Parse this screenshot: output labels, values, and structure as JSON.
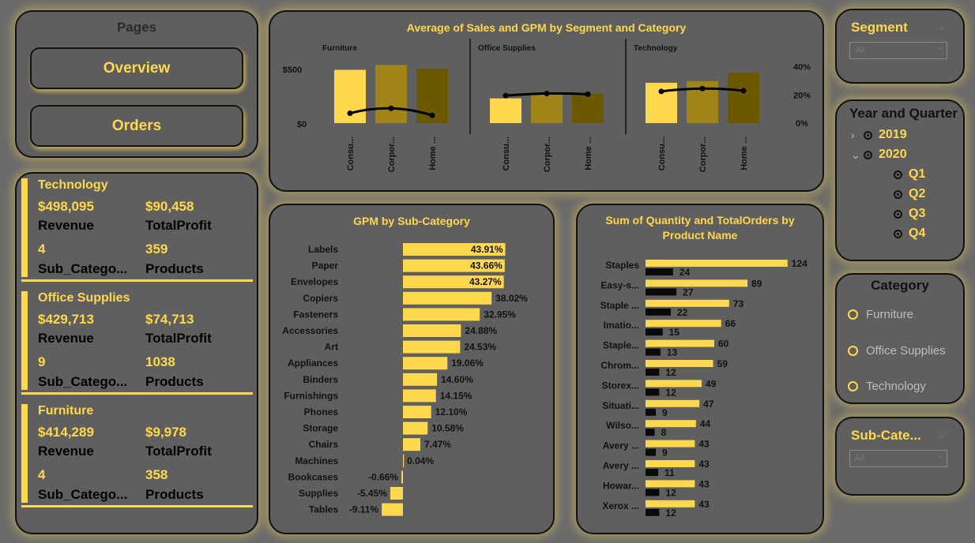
{
  "pages": {
    "title": "Pages",
    "buttons": [
      "Overview",
      "Orders"
    ]
  },
  "cards": [
    {
      "category": "Technology",
      "revenue": "$498,095",
      "revenue_label": "Revenue",
      "profit": "$90,458",
      "profit_label": "TotalProfit",
      "subcats": "4",
      "subcats_label": "Sub_Catego...",
      "products": "359",
      "products_label": "Products"
    },
    {
      "category": "Office Supplies",
      "revenue": "$429,713",
      "revenue_label": "Revenue",
      "profit": "$74,713",
      "profit_label": "TotalProfit",
      "subcats": "9",
      "subcats_label": "Sub_Catego...",
      "products": "1038",
      "products_label": "Products"
    },
    {
      "category": "Furniture",
      "revenue": "$414,289",
      "revenue_label": "Revenue",
      "profit": "$9,978",
      "profit_label": "TotalProfit",
      "subcats": "4",
      "subcats_label": "Sub_Catego...",
      "products": "358",
      "products_label": "Products"
    }
  ],
  "chart_data": [
    {
      "type": "bar",
      "title": "Average of Sales and GPM by Segment and Category",
      "panels": [
        "Furniture",
        "Office Supplies",
        "Technology"
      ],
      "categories": [
        "Consu...",
        "Corpor...",
        "Home ..."
      ],
      "y_ticks": [
        "$0",
        "$500"
      ],
      "y2_ticks": [
        "0%",
        "20%",
        "40%"
      ],
      "ylim": [
        0,
        550
      ],
      "y2lim": [
        0,
        0.42
      ],
      "series": [
        {
          "values": [
            [
              495,
              540,
              505
            ],
            [
              230,
              280,
              275
            ],
            [
              375,
              390,
              470
            ]
          ]
        },
        {
          "values": [
            [
              0.07,
              0.105,
              0.055
            ],
            [
              0.195,
              0.21,
              0.205
            ],
            [
              0.225,
              0.245,
              0.23
            ]
          ]
        }
      ],
      "colors": [
        "#ffd84d",
        "#a08418",
        "#6b5800"
      ]
    },
    {
      "type": "bar",
      "title": "GPM by Sub-Category",
      "categories": [
        "Labels",
        "Paper",
        "Envelopes",
        "Copiers",
        "Fasteners",
        "Accessories",
        "Art",
        "Appliances",
        "Binders",
        "Furnishings",
        "Phones",
        "Storage",
        "Chairs",
        "Machines",
        "Bookcases",
        "Supplies",
        "Tables"
      ],
      "values": [
        43.91,
        43.66,
        43.27,
        38.02,
        32.95,
        24.88,
        24.53,
        19.06,
        14.6,
        14.15,
        12.1,
        10.58,
        7.47,
        0.04,
        -0.66,
        -5.45,
        -9.11
      ],
      "labels": [
        "43.91%",
        "43.66%",
        "43.27%",
        "38.02%",
        "32.95%",
        "24.88%",
        "24.53%",
        "19.06%",
        "14.60%",
        "14.15%",
        "12.10%",
        "10.58%",
        "7.47%",
        "0.04%",
        "-0.66%",
        "-5.45%",
        "-9.11%"
      ]
    },
    {
      "type": "bar",
      "title": "Sum of Quantity and TotalOrders by Product Name",
      "categories": [
        "Staples",
        "Easy-s...",
        "Staple ...",
        "Imatio...",
        "Staple...",
        "Chrom...",
        "Storex...",
        "Situati...",
        "Wilso...",
        "Avery ...",
        "Avery ...",
        "Howar...",
        "Xerox ..."
      ],
      "series": [
        {
          "values": [
            124,
            89,
            73,
            66,
            60,
            59,
            49,
            47,
            44,
            43,
            43,
            43,
            43
          ]
        },
        {
          "values": [
            24,
            27,
            22,
            15,
            13,
            12,
            12,
            9,
            8,
            9,
            11,
            12,
            12
          ]
        }
      ]
    }
  ],
  "slicers": {
    "segment": {
      "title": "Segment",
      "value": "All"
    },
    "year_quarter": {
      "title": "Year and Quarter",
      "years": [
        "2019",
        "2020"
      ],
      "quarters": [
        "Q1",
        "Q2",
        "Q3",
        "Q4"
      ]
    },
    "category": {
      "title": "Category",
      "options": [
        "Furniture",
        "Office Supplies",
        "Technology"
      ]
    },
    "sub_category": {
      "title": "Sub-Cate...",
      "value": "All"
    }
  }
}
